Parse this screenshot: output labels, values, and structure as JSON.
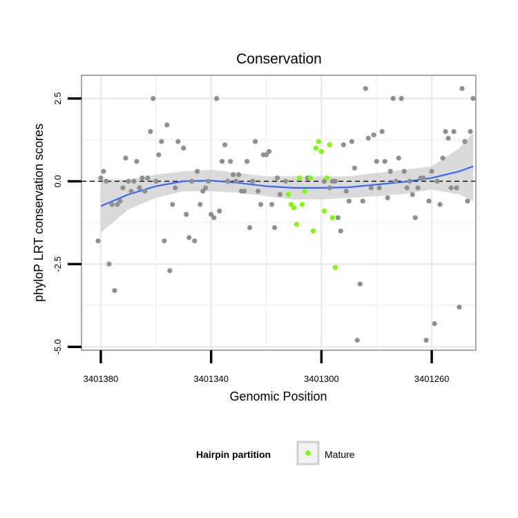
{
  "chart_data": {
    "type": "scatter",
    "title": "Conservation",
    "xlabel": "Genomic Position",
    "ylabel": "phyloP LRT conservation scores",
    "x_reversed": true,
    "xlim": [
      3401387,
      3401244
    ],
    "ylim": [
      -5.1,
      3.2
    ],
    "x_ticks": [
      {
        "value": 3401380,
        "label": "3401380"
      },
      {
        "value": 3401340,
        "label": "3401340"
      },
      {
        "value": 3401300,
        "label": "3401300"
      },
      {
        "value": 3401260,
        "label": "3401260"
      }
    ],
    "y_ticks": [
      {
        "value": 2.5,
        "label": "2.5"
      },
      {
        "value": 0.0,
        "label": "0.0"
      },
      {
        "value": -2.5,
        "label": "-2.5"
      },
      {
        "value": -5.0,
        "label": "-5.0"
      }
    ],
    "grid": true,
    "reference_line": {
      "y": 0,
      "style": "dashed"
    },
    "legend": {
      "title": "Hairpin partition",
      "placement": "bottom",
      "entries": [
        {
          "name": "Mature",
          "color": "#7cfc00"
        }
      ]
    },
    "colors": {
      "other": "#8f8f8f",
      "mature": "#7cfc00",
      "smooth": "#3366ff",
      "ribbon": "#d3d3d3"
    },
    "series": [
      {
        "name": "",
        "color": "#8f8f8f",
        "points": [
          [
            3401381,
            -1.8
          ],
          [
            3401380,
            0.1
          ],
          [
            3401379,
            0.3
          ],
          [
            3401378,
            0.0
          ],
          [
            3401377,
            -2.5
          ],
          [
            3401376,
            -0.7
          ],
          [
            3401375,
            -3.3
          ],
          [
            3401374,
            -0.7
          ],
          [
            3401373,
            -0.6
          ],
          [
            3401372,
            -0.2
          ],
          [
            3401371,
            0.7
          ],
          [
            3401370,
            0.0
          ],
          [
            3401369,
            -0.3
          ],
          [
            3401368,
            0.0
          ],
          [
            3401367,
            0.6
          ],
          [
            3401366,
            -0.2
          ],
          [
            3401365,
            0.1
          ],
          [
            3401364,
            -0.3
          ],
          [
            3401363,
            0.1
          ],
          [
            3401362,
            1.5
          ],
          [
            3401361,
            2.5
          ],
          [
            3401360,
            0.0
          ],
          [
            3401359,
            0.8
          ],
          [
            3401358,
            1.2
          ],
          [
            3401357,
            -1.8
          ],
          [
            3401356,
            1.7
          ],
          [
            3401355,
            -2.7
          ],
          [
            3401354,
            -0.7
          ],
          [
            3401353,
            -0.2
          ],
          [
            3401352,
            1.2
          ],
          [
            3401350,
            1.0
          ],
          [
            3401349,
            -1.0
          ],
          [
            3401348,
            -1.7
          ],
          [
            3401347,
            0.0
          ],
          [
            3401346,
            -1.8
          ],
          [
            3401345,
            0.3
          ],
          [
            3401344,
            -0.7
          ],
          [
            3401343,
            -0.3
          ],
          [
            3401342,
            -0.2
          ],
          [
            3401341,
            0.0
          ],
          [
            3401340,
            -1.0
          ],
          [
            3401339,
            -1.1
          ],
          [
            3401338,
            2.5
          ],
          [
            3401337,
            -0.9
          ],
          [
            3401336,
            0.6
          ],
          [
            3401335,
            1.1
          ],
          [
            3401334,
            0.0
          ],
          [
            3401333,
            0.6
          ],
          [
            3401332,
            0.2
          ],
          [
            3401331,
            0.0
          ],
          [
            3401330,
            0.2
          ],
          [
            3401329,
            -0.3
          ],
          [
            3401328,
            -0.3
          ],
          [
            3401327,
            0.6
          ],
          [
            3401326,
            -1.4
          ],
          [
            3401325,
            0.0
          ],
          [
            3401324,
            1.2
          ],
          [
            3401323,
            -0.3
          ],
          [
            3401322,
            -0.7
          ],
          [
            3401321,
            0.8
          ],
          [
            3401320,
            0.8
          ],
          [
            3401319,
            0.9
          ],
          [
            3401318,
            -0.7
          ],
          [
            3401317,
            -1.4
          ],
          [
            3401316,
            0.1
          ],
          [
            3401315,
            -0.4
          ],
          [
            3401313,
            0.0
          ],
          [
            3401305,
            0.1
          ],
          [
            3401299,
            0.0
          ],
          [
            3401297,
            -0.2
          ],
          [
            3401296,
            0.0
          ],
          [
            3401295,
            0.0
          ],
          [
            3401294,
            -1.1
          ],
          [
            3401293,
            -1.5
          ],
          [
            3401292,
            1.1
          ],
          [
            3401291,
            -0.3
          ],
          [
            3401290,
            -0.6
          ],
          [
            3401289,
            1.2
          ],
          [
            3401288,
            0.4
          ],
          [
            3401287,
            -4.8
          ],
          [
            3401286,
            -3.1
          ],
          [
            3401285,
            -0.6
          ],
          [
            3401284,
            2.8
          ],
          [
            3401283,
            1.3
          ],
          [
            3401282,
            -0.2
          ],
          [
            3401281,
            1.4
          ],
          [
            3401280,
            0.6
          ],
          [
            3401279,
            -0.2
          ],
          [
            3401278,
            1.5
          ],
          [
            3401277,
            0.6
          ],
          [
            3401276,
            -0.5
          ],
          [
            3401275,
            0.3
          ],
          [
            3401274,
            2.5
          ],
          [
            3401273,
            0.0
          ],
          [
            3401272,
            0.7
          ],
          [
            3401271,
            2.5
          ],
          [
            3401270,
            0.3
          ],
          [
            3401269,
            -0.2
          ],
          [
            3401268,
            0.0
          ],
          [
            3401267,
            -0.4
          ],
          [
            3401266,
            -1.1
          ],
          [
            3401265,
            -0.2
          ],
          [
            3401264,
            0.1
          ],
          [
            3401263,
            0.1
          ],
          [
            3401262,
            -4.8
          ],
          [
            3401261,
            -0.6
          ],
          [
            3401260,
            0.3
          ],
          [
            3401259,
            -4.3
          ],
          [
            3401258,
            0.0
          ],
          [
            3401257,
            -0.7
          ],
          [
            3401256,
            0.7
          ],
          [
            3401255,
            1.5
          ],
          [
            3401254,
            1.3
          ],
          [
            3401253,
            -0.2
          ],
          [
            3401252,
            1.5
          ],
          [
            3401251,
            -0.2
          ],
          [
            3401250,
            -3.8
          ],
          [
            3401249,
            2.8
          ],
          [
            3401248,
            1.2
          ],
          [
            3401247,
            -0.6
          ],
          [
            3401246,
            1.5
          ],
          [
            3401245,
            2.5
          ]
        ]
      },
      {
        "name": "Mature",
        "color": "#7cfc00",
        "points": [
          [
            3401312,
            -0.4
          ],
          [
            3401311,
            -0.7
          ],
          [
            3401310,
            -0.8
          ],
          [
            3401309,
            -1.3
          ],
          [
            3401308,
            0.1
          ],
          [
            3401307,
            -0.7
          ],
          [
            3401306,
            -0.3
          ],
          [
            3401304,
            0.1
          ],
          [
            3401303,
            -1.5
          ],
          [
            3401302,
            1.0
          ],
          [
            3401301,
            1.2
          ],
          [
            3401300,
            0.9
          ],
          [
            3401299,
            -0.9
          ],
          [
            3401298,
            0.1
          ],
          [
            3401297,
            1.1
          ],
          [
            3401296,
            -1.1
          ],
          [
            3401295,
            -2.6
          ]
        ]
      }
    ],
    "smooth": {
      "color": "#3366ff",
      "x": [
        3401380,
        3401370,
        3401360,
        3401350,
        3401340,
        3401330,
        3401320,
        3401310,
        3401300,
        3401290,
        3401280,
        3401270,
        3401260,
        3401250,
        3401245
      ],
      "y": [
        -0.75,
        -0.4,
        -0.15,
        0.0,
        0.02,
        -0.05,
        -0.15,
        -0.2,
        -0.2,
        -0.18,
        -0.1,
        -0.02,
        0.1,
        0.3,
        0.45
      ],
      "lower": [
        -1.55,
        -0.85,
        -0.5,
        -0.3,
        -0.3,
        -0.35,
        -0.45,
        -0.55,
        -0.55,
        -0.5,
        -0.45,
        -0.38,
        -0.25,
        -0.4,
        -0.6
      ],
      "upper": [
        0.05,
        0.05,
        0.2,
        0.3,
        0.35,
        0.25,
        0.15,
        0.15,
        0.15,
        0.15,
        0.25,
        0.35,
        0.45,
        1.0,
        1.45
      ]
    }
  }
}
